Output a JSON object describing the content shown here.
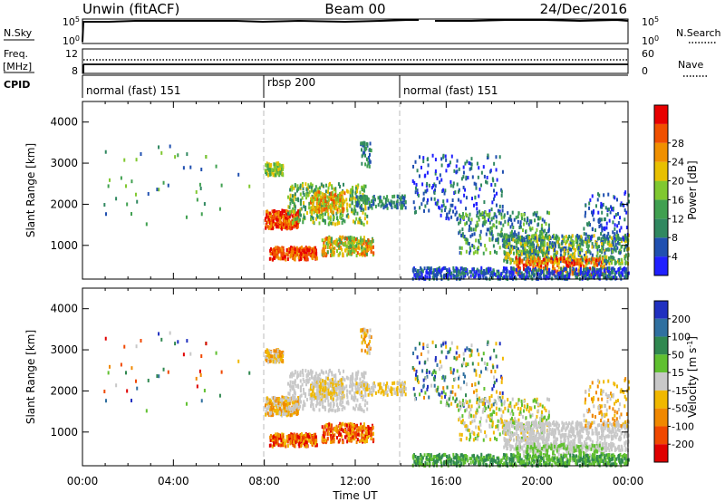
{
  "header": {
    "title_left": "Unwin (fitACF)",
    "title_center": "Beam 00",
    "title_right": "24/Dec/2016"
  },
  "top_panels": {
    "nsky_label": "N.Sky",
    "nsearch_label": "N.Search",
    "freq_label": "Freq.",
    "freq_unit": "[MHz]",
    "nave_label": "Nave",
    "cpid_label": "CPID",
    "nsky_ticks": [
      "10^5",
      "10^0"
    ],
    "nsearch_ticks": [
      "10^5",
      "10^0"
    ],
    "freq_ticks": [
      "12",
      "8"
    ],
    "nave_ticks": [
      "60",
      "0"
    ]
  },
  "cpid_segments": [
    {
      "label": "normal (fast) 151",
      "start_hour": 0
    },
    {
      "label": "rbsp 200",
      "start_hour": 8
    },
    {
      "label": "normal (fast) 151",
      "start_hour": 14
    }
  ],
  "chart_data": [
    {
      "type": "heatmap",
      "ylabel": "Slant Range [km]",
      "ylim": [
        180,
        4500
      ],
      "yticks": [
        "1000",
        "2000",
        "3000",
        "4000"
      ],
      "xlim": [
        0,
        24
      ],
      "colorbar": {
        "label": "Power [dB]",
        "ticks": [
          "4",
          "8",
          "12",
          "16",
          "20",
          "24",
          "28"
        ],
        "colors": [
          "#2020ff",
          "#2050b0",
          "#308860",
          "#40a050",
          "#80c830",
          "#e8c000",
          "#f09000",
          "#f05000",
          "#e80000"
        ]
      }
    },
    {
      "type": "heatmap",
      "ylabel": "Slant Range [km]",
      "xlabel": "Time UT",
      "ylim": [
        180,
        4500
      ],
      "yticks": [
        "1000",
        "2000",
        "3000",
        "4000"
      ],
      "xlim": [
        0,
        24
      ],
      "xticks": [
        "00:00",
        "04:00",
        "08:00",
        "12:00",
        "16:00",
        "20:00",
        "00:00"
      ],
      "colorbar": {
        "label": "Velocity [m s^-1]",
        "ticks": [
          "200",
          "100",
          "50",
          "15",
          "-15",
          "-50",
          "-100",
          "-200"
        ],
        "colors": [
          "#2030c0",
          "#3070a0",
          "#308850",
          "#60c030",
          "#c8c8c8",
          "#f0b800",
          "#f08800",
          "#f04800",
          "#e00000"
        ]
      }
    }
  ]
}
